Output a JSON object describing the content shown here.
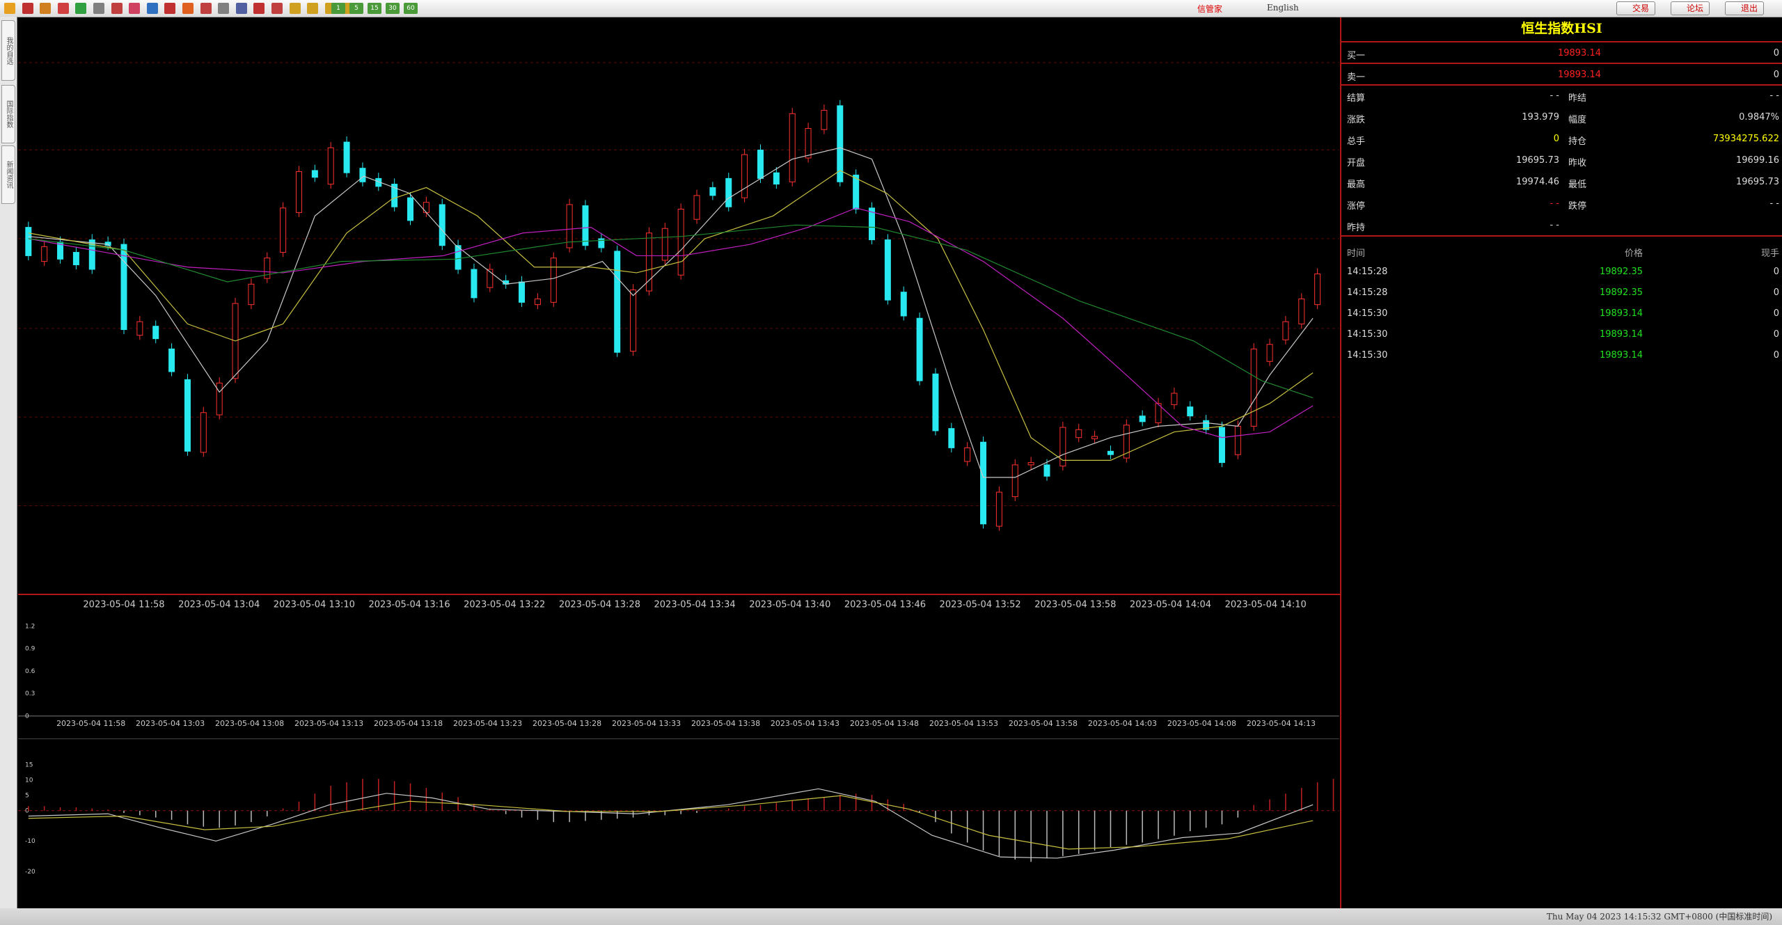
{
  "toolbar": {
    "periods": [
      "1",
      "5",
      "15",
      "30",
      "60"
    ],
    "link": "信管家",
    "language": "English",
    "buttons": [
      "交易",
      "论坛",
      "退出"
    ]
  },
  "side_tabs": [
    "我的自选",
    "国际指数",
    "新闻资讯"
  ],
  "main_chart": {
    "time_labels": [
      "2023-05-04 11:58",
      "2023-05-04 13:04",
      "2023-05-04 13:10",
      "2023-05-04 13:16",
      "2023-05-04 13:22",
      "2023-05-04 13:28",
      "2023-05-04 13:34",
      "2023-05-04 13:40",
      "2023-05-04 13:46",
      "2023-05-04 13:52",
      "2023-05-04 13:58",
      "2023-05-04 14:04",
      "2023-05-04 14:10"
    ]
  },
  "volume_panel": {
    "ylim": [
      0,
      1.2
    ],
    "yticks": [
      1.2,
      0.9,
      0.6,
      0.3,
      0
    ],
    "time_labels": [
      "2023-05-04 11:58",
      "2023-05-04 13:03",
      "2023-05-04 13:08",
      "2023-05-04 13:13",
      "2023-05-04 13:18",
      "2023-05-04 13:23",
      "2023-05-04 13:28",
      "2023-05-04 13:33",
      "2023-05-04 13:38",
      "2023-05-04 13:43",
      "2023-05-04 13:48",
      "2023-05-04 13:53",
      "2023-05-04 13:58",
      "2023-05-04 14:03",
      "2023-05-04 14:08",
      "2023-05-04 14:13"
    ]
  },
  "macd_panel": {
    "ylim": [
      -20,
      15
    ],
    "yticks": [
      15,
      10,
      5,
      0,
      -10,
      -20
    ]
  },
  "quote": {
    "title": "恒生指数HSI",
    "depth": [
      {
        "label": "买一",
        "price": 19893.14,
        "volume": 0
      },
      {
        "label": "卖一",
        "price": 19893.14,
        "volume": 0
      }
    ],
    "stats": [
      [
        "结算",
        "- -",
        "昨结",
        "- -"
      ],
      [
        "涨跌",
        193.979,
        "幅度",
        "0.9847%"
      ],
      [
        "总手",
        0,
        "持仓",
        73934275.622
      ],
      [
        "开盘",
        19695.73,
        "昨收",
        19699.16
      ],
      [
        "最高",
        19974.46,
        "最低",
        19695.73
      ],
      [
        "涨停",
        "- -",
        "跌停",
        "- -"
      ],
      [
        "昨持",
        "- -"
      ]
    ],
    "trades_header": [
      "时间",
      "价格",
      "现手"
    ],
    "trades": [
      [
        "14:15:28",
        19892.35,
        0
      ],
      [
        "14:15:28",
        19892.35,
        0
      ],
      [
        "14:15:30",
        19893.14,
        0
      ],
      [
        "14:15:30",
        19893.14,
        0
      ],
      [
        "14:15:30",
        19893.14,
        0
      ]
    ]
  },
  "status_bar": {
    "clock": "Thu May 04 2023 14:15:32 GMT+0800 (中国标准时间)"
  }
}
